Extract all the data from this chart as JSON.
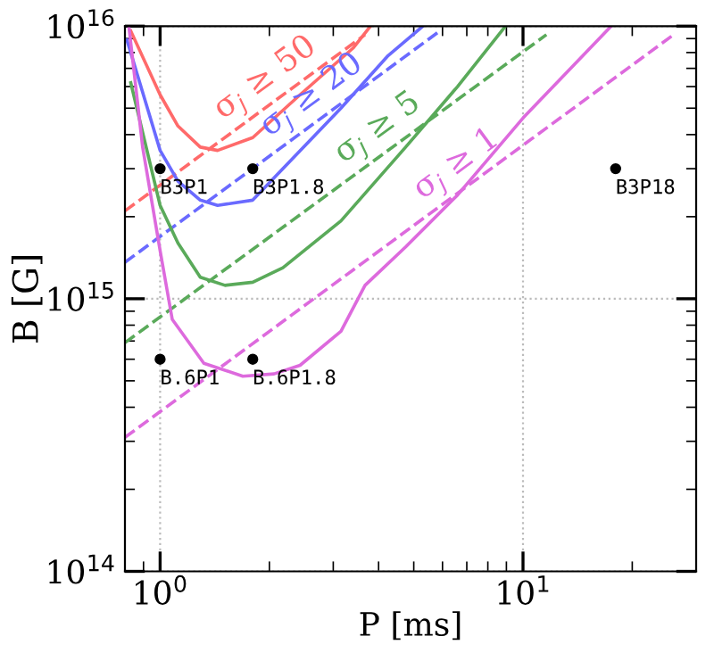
{
  "chart_data": {
    "type": "line",
    "xlabel": "P [ms]",
    "ylabel": "B [G]",
    "log": "xy",
    "grid": true,
    "legend": false,
    "xlim": [
      0.8,
      30
    ],
    "ylim": [
      100000000000000.0,
      1e+16
    ],
    "xticks": [
      {
        "value": 1,
        "label": "10$^{0}$"
      },
      {
        "value": 10,
        "label": "10$^{1}$"
      }
    ],
    "yticks": [
      {
        "value": 100000000000000.0,
        "label": "10$^{14}$"
      },
      {
        "value": 1000000000000000.0,
        "label": "10$^{15}$"
      },
      {
        "value": 1e+16,
        "label": "10$^{16}$"
      }
    ],
    "series": [
      {
        "line_style": "solid",
        "color": "#ff6a6a",
        "x": [
          0.83,
          1.0,
          1.12,
          1.29,
          1.44,
          1.8,
          2.43,
          3.4,
          3.8
        ],
        "values": [
          9600000000000000.0,
          5600000000000000.0,
          4300000000000000.0,
          3600000000000000.0,
          3500000000000000.0,
          3900000000000000.0,
          5600000000000000.0,
          8300000000000000.0,
          1e+16
        ]
      },
      {
        "line_style": "dashed",
        "name": "σ$_{j}$ ≥ 50",
        "color": "#ff6a6a",
        "x": [
          0.8,
          3.67
        ],
        "values": [
          2100000000000000.0,
          9300000000000000.0
        ]
      },
      {
        "line_style": "solid",
        "color": "#6a6aff",
        "x": [
          0.81,
          1.0,
          1.12,
          1.29,
          1.44,
          1.8,
          2.18,
          3.15,
          4.25,
          5.3
        ],
        "values": [
          8900000000000000.0,
          3500000000000000.0,
          2700000000000000.0,
          2300000000000000.0,
          2200000000000000.0,
          2300000000000000.0,
          3000000000000000.0,
          5000000000000000.0,
          7800000000000000.0,
          1e+16
        ]
      },
      {
        "line_style": "dashed",
        "name": "σ$_{j}$ ≥ 20",
        "color": "#6a6aff",
        "x": [
          0.8,
          5.9
        ],
        "values": [
          1360000000000000.0,
          9600000000000000.0
        ]
      },
      {
        "line_style": "solid",
        "color": "#5aaa5a",
        "x": [
          0.83,
          1.0,
          1.12,
          1.29,
          1.51,
          1.8,
          2.18,
          3.15,
          4.75,
          6.6,
          8.95
        ],
        "values": [
          6200000000000000.0,
          2200000000000000.0,
          1600000000000000.0,
          1200000000000000.0,
          1120000000000000.0,
          1150000000000000.0,
          1300000000000000.0,
          1930000000000000.0,
          3600000000000000.0,
          6000000000000000.0,
          1e+16
        ]
      },
      {
        "line_style": "dashed",
        "name": "σ$_{j}$ ≥ 5",
        "color": "#5aaa5a",
        "x": [
          0.8,
          11.6
        ],
        "values": [
          690000000000000.0,
          9300000000000000.0
        ]
      },
      {
        "line_style": "solid",
        "color": "#dd6add",
        "x": [
          0.82,
          0.895,
          1.0,
          1.08,
          1.32,
          1.69,
          2.06,
          2.43,
          3.15,
          3.67,
          4.75,
          6.6,
          10,
          17.5
        ],
        "values": [
          1e+16,
          3600000000000000.0,
          1500000000000000.0,
          840000000000000.0,
          580000000000000.0,
          520000000000000.0,
          530000000000000.0,
          570000000000000.0,
          760000000000000.0,
          1120000000000000.0,
          1550000000000000.0,
          2400000000000000.0,
          4600000000000000.0,
          1e+16
        ]
      },
      {
        "line_style": "dashed",
        "name": "σ$_{j}$ ≥ 1",
        "color": "#dd6add",
        "x": [
          0.8,
          26
        ],
        "values": [
          310000000000000.0,
          9300000000000000.0
        ]
      },
      {
        "type": "scatter",
        "marker": "circle",
        "color": "#000000",
        "x": [
          1,
          1.8,
          18,
          1,
          1.8
        ],
        "values": [
          3000000000000000.0,
          3000000000000000.0,
          3000000000000000.0,
          600000000000000.0,
          600000000000000.0
        ]
      }
    ],
    "annotations": [
      {
        "text": "B3P1",
        "x": 1,
        "y": 3000000000000000.0
      },
      {
        "text": "B3P1.8",
        "x": 1.8,
        "y": 3000000000000000.0
      },
      {
        "text": "B3P18",
        "x": 18,
        "y": 3000000000000000.0
      },
      {
        "text": "B.6P1",
        "x": 1,
        "y": 600000000000000.0
      },
      {
        "text": "B.6P1.8",
        "x": 1.8,
        "y": 600000000000000.0
      }
    ]
  }
}
